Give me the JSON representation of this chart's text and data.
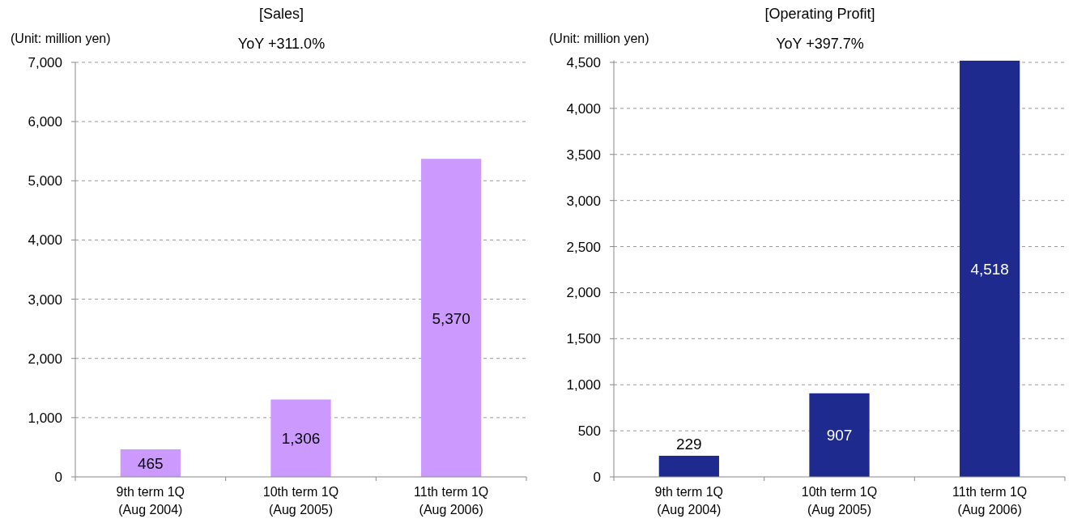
{
  "chart_data": [
    {
      "type": "bar",
      "title": "[Sales]",
      "ylabel": "(Unit: million yen)",
      "annotations": [
        "YoY +311.0%"
      ],
      "categories": [
        "9th term 1Q\n(Aug 2004)",
        "10th term 1Q\n(Aug 2005)",
        "11th term 1Q\n(Aug 2006)"
      ],
      "values": [
        465,
        1306,
        5370
      ],
      "color": "#cc99ff",
      "ylim": [
        0,
        7000
      ],
      "yticks": [
        {
          "value": 0,
          "label": "0"
        },
        {
          "value": 1000,
          "label": "1,000"
        },
        {
          "value": 2000,
          "label": "2,000"
        },
        {
          "value": 3000,
          "label": "3,000"
        },
        {
          "value": 4000,
          "label": "4,000"
        },
        {
          "value": 5000,
          "label": "5,000"
        },
        {
          "value": 6000,
          "label": "6,000"
        },
        {
          "value": 7000,
          "label": "7,000"
        }
      ],
      "grid": "y",
      "data_labels": true,
      "value_labels": [
        "465",
        "1,306",
        "5,370"
      ]
    },
    {
      "type": "bar",
      "title": "[Operating Profit]",
      "ylabel": "(Unit: million yen)",
      "annotations": [
        "YoY +397.7%"
      ],
      "categories": [
        "9th term 1Q\n(Aug 2004)",
        "10th term 1Q\n(Aug 2005)",
        "11th term 1Q\n(Aug 2006)"
      ],
      "values": [
        229,
        907,
        4518
      ],
      "color": "#1f2a8f",
      "ylim": [
        0,
        4520
      ],
      "yticks": [
        {
          "value": 0,
          "label": "0"
        },
        {
          "value": 500,
          "label": "500"
        },
        {
          "value": 1000,
          "label": "1,000"
        },
        {
          "value": 1500,
          "label": "1,500"
        },
        {
          "value": 2000,
          "label": "2,000"
        },
        {
          "value": 2500,
          "label": "2,500"
        },
        {
          "value": 3000,
          "label": "3,000"
        },
        {
          "value": 3500,
          "label": "3,500"
        },
        {
          "value": 4000,
          "label": "4,000"
        },
        {
          "value": 4500,
          "label": "4,500"
        }
      ],
      "grid": "y",
      "data_labels": true,
      "value_labels": [
        "229",
        "907",
        "4,518"
      ]
    }
  ]
}
